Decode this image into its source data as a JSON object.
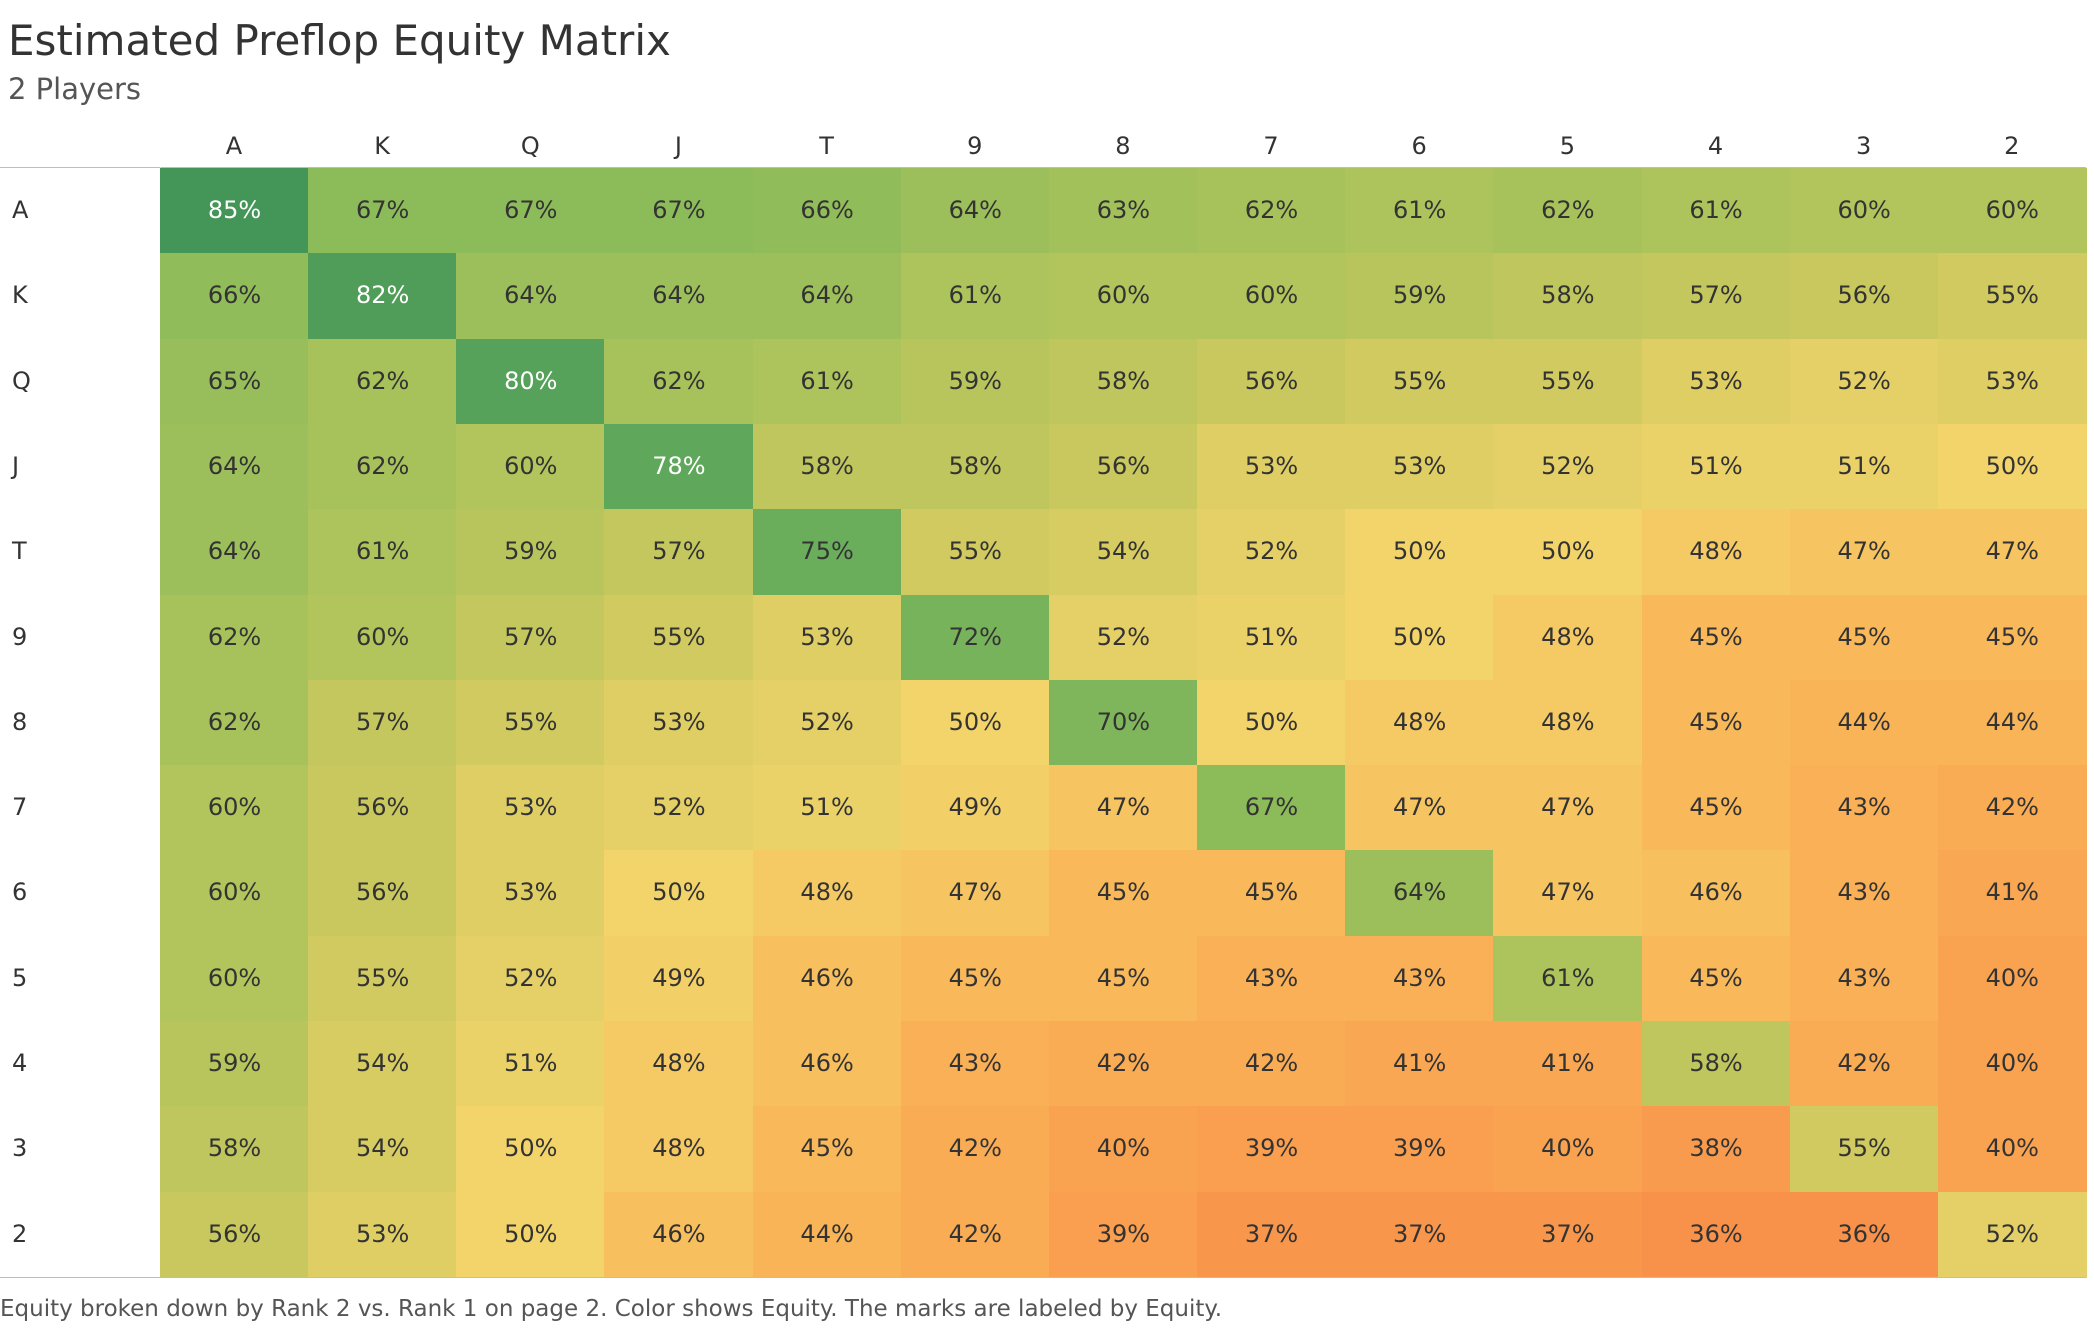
{
  "header": {
    "title": "Estimated Preflop Equity Matrix",
    "subtitle": "2 Players"
  },
  "footer": {
    "caption": "Equity broken down by Rank 2 vs. Rank 1 on page 2.  Color shows Equity.  The marks are labeled by Equity."
  },
  "chart_data": {
    "type": "heatmap",
    "title": "Estimated Preflop Equity Matrix",
    "subtitle": "2 Players",
    "columns": [
      "A",
      "K",
      "Q",
      "J",
      "T",
      "9",
      "8",
      "7",
      "6",
      "5",
      "4",
      "3",
      "2"
    ],
    "rows": [
      "A",
      "K",
      "Q",
      "J",
      "T",
      "9",
      "8",
      "7",
      "6",
      "5",
      "4",
      "3",
      "2"
    ],
    "values": [
      [
        85,
        67,
        67,
        67,
        66,
        64,
        63,
        62,
        61,
        62,
        61,
        60,
        60
      ],
      [
        66,
        82,
        64,
        64,
        64,
        61,
        60,
        60,
        59,
        58,
        57,
        56,
        55
      ],
      [
        65,
        62,
        80,
        62,
        61,
        59,
        58,
        56,
        55,
        55,
        53,
        52,
        53
      ],
      [
        64,
        62,
        60,
        78,
        58,
        58,
        56,
        53,
        53,
        52,
        51,
        51,
        50
      ],
      [
        64,
        61,
        59,
        57,
        75,
        55,
        54,
        52,
        50,
        50,
        48,
        47,
        47
      ],
      [
        62,
        60,
        57,
        55,
        53,
        72,
        52,
        51,
        50,
        48,
        45,
        45,
        45
      ],
      [
        62,
        57,
        55,
        53,
        52,
        50,
        70,
        50,
        48,
        48,
        45,
        44,
        44
      ],
      [
        60,
        56,
        53,
        52,
        51,
        49,
        47,
        67,
        47,
        47,
        45,
        43,
        42
      ],
      [
        60,
        56,
        53,
        50,
        48,
        47,
        45,
        45,
        64,
        47,
        46,
        43,
        41
      ],
      [
        60,
        55,
        52,
        49,
        46,
        45,
        45,
        43,
        43,
        61,
        45,
        43,
        40
      ],
      [
        59,
        54,
        51,
        48,
        46,
        43,
        42,
        42,
        41,
        41,
        58,
        42,
        40
      ],
      [
        58,
        54,
        50,
        48,
        45,
        42,
        40,
        39,
        39,
        40,
        38,
        55,
        40
      ],
      [
        56,
        53,
        50,
        46,
        44,
        42,
        39,
        37,
        37,
        37,
        36,
        36,
        52
      ]
    ],
    "value_suffix": "%",
    "color_scale": {
      "stops": [
        {
          "value": 36,
          "color": "#F8924A"
        },
        {
          "value": 44,
          "color": "#FAB458"
        },
        {
          "value": 50,
          "color": "#F2D46A"
        },
        {
          "value": 56,
          "color": "#C9C85E"
        },
        {
          "value": 62,
          "color": "#A7C25B"
        },
        {
          "value": 67,
          "color": "#8CBB5A"
        },
        {
          "value": 75,
          "color": "#6AAE5C"
        },
        {
          "value": 85,
          "color": "#449658"
        }
      ]
    },
    "legend": "none"
  }
}
